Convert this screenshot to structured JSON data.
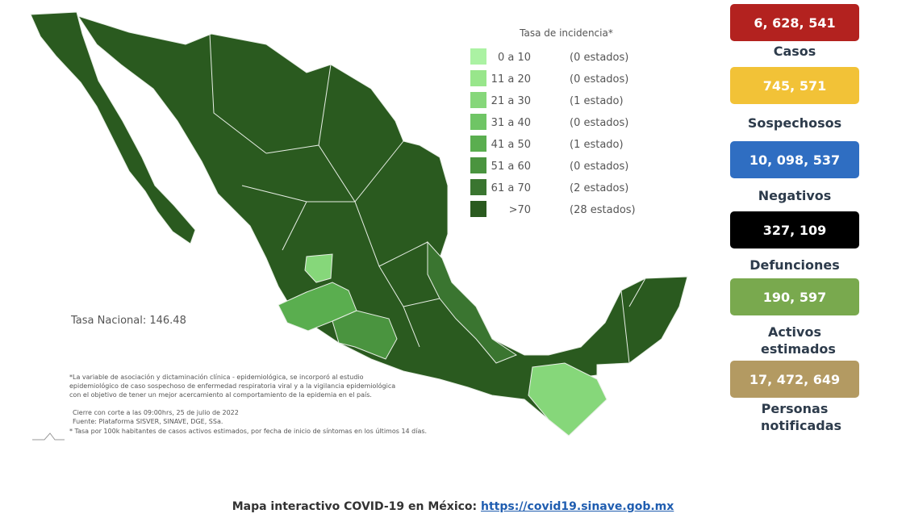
{
  "legend": {
    "title": "Tasa de incidencia*",
    "items": [
      {
        "range": "0 a 10",
        "count": "(0 estados)",
        "color": "#abf2a3"
      },
      {
        "range": "11 a 20",
        "count": "(0 estados)",
        "color": "#98e68b"
      },
      {
        "range": "21 a 30",
        "count": "(1 estado)",
        "color": "#86d77a"
      },
      {
        "range": "31 a 40",
        "count": "(0 estados)",
        "color": "#6fc565"
      },
      {
        "range": "41 a 50",
        "count": "(1 estado)",
        "color": "#5aae4f"
      },
      {
        "range": "51 a 60",
        "count": "(0 estados)",
        "color": "#4a943f"
      },
      {
        "range": "61 a 70",
        "count": "(2 estados)",
        "color": "#3a7530"
      },
      {
        "range": ">70",
        "count": "(28 estados)",
        "color": "#2a5a1f"
      }
    ]
  },
  "national_rate": "Tasa Nacional: 146.48",
  "notes": [
    "*La variable de asociación y dictaminación clínica - epidemiológica, se incorporó al estudio epidemiológico de caso sospechoso de enfermedad respiratoria viral y a la vigilancia epidemiológica con el objetivo de tener un mejor acercamiento al comportamiento de la epidemia en el país.",
    "Cierre con corte a las 09:00hrs, 25 de julio de 2022",
    "Fuente: Plataforma SISVER, SINAVE, DGE, SSa.",
    "* Tasa por 100k habitantes de casos activos estimados, por fecha de inicio de síntomas en los últimos 14 días."
  ],
  "stats": [
    {
      "value": "6, 628, 541",
      "label": "Casos",
      "color": "#b3221f"
    },
    {
      "value": "745, 571",
      "label": "Sospechosos",
      "color": "#f2c237"
    },
    {
      "value": "10, 098, 537",
      "label": "Negativos",
      "color": "#2f6ec2"
    },
    {
      "value": "327, 109",
      "label": "Defunciones",
      "color": "#000000"
    },
    {
      "value": "190, 597",
      "label": "Activos estimados",
      "color": "#79a94e"
    },
    {
      "value": "17, 472, 649",
      "label": "Personas notificadas",
      "color": "#b39a62"
    }
  ],
  "footer": {
    "text": "Mapa interactivo COVID-19 en México:",
    "link": "https://covid19.sinave.gob.mx"
  }
}
